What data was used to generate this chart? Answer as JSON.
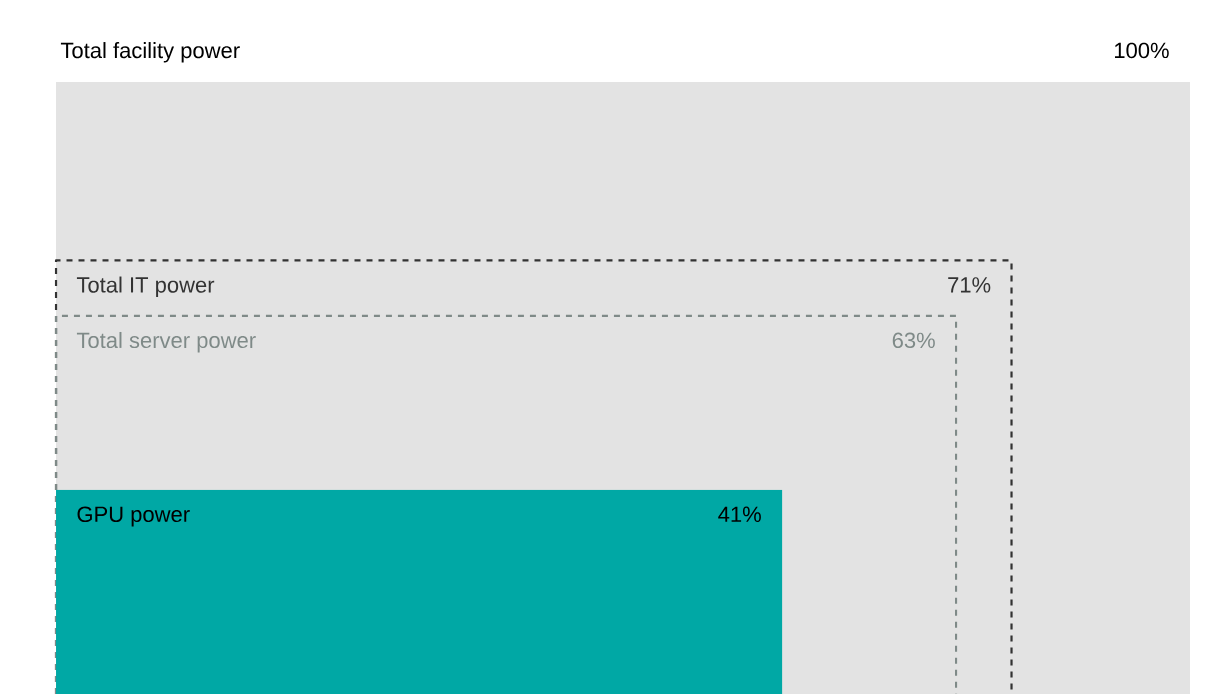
{
  "chart_data": {
    "type": "other",
    "categories": [
      "Total facility power",
      "Total IT power",
      "Total server power",
      "GPU power"
    ],
    "values": [
      100,
      71,
      63,
      41
    ],
    "value_labels": [
      "100%",
      "71%",
      "63%",
      "41%"
    ],
    "colors": [
      "#e3e3e3",
      "#333333",
      "#7f8a88",
      "#00a8a5"
    ]
  }
}
